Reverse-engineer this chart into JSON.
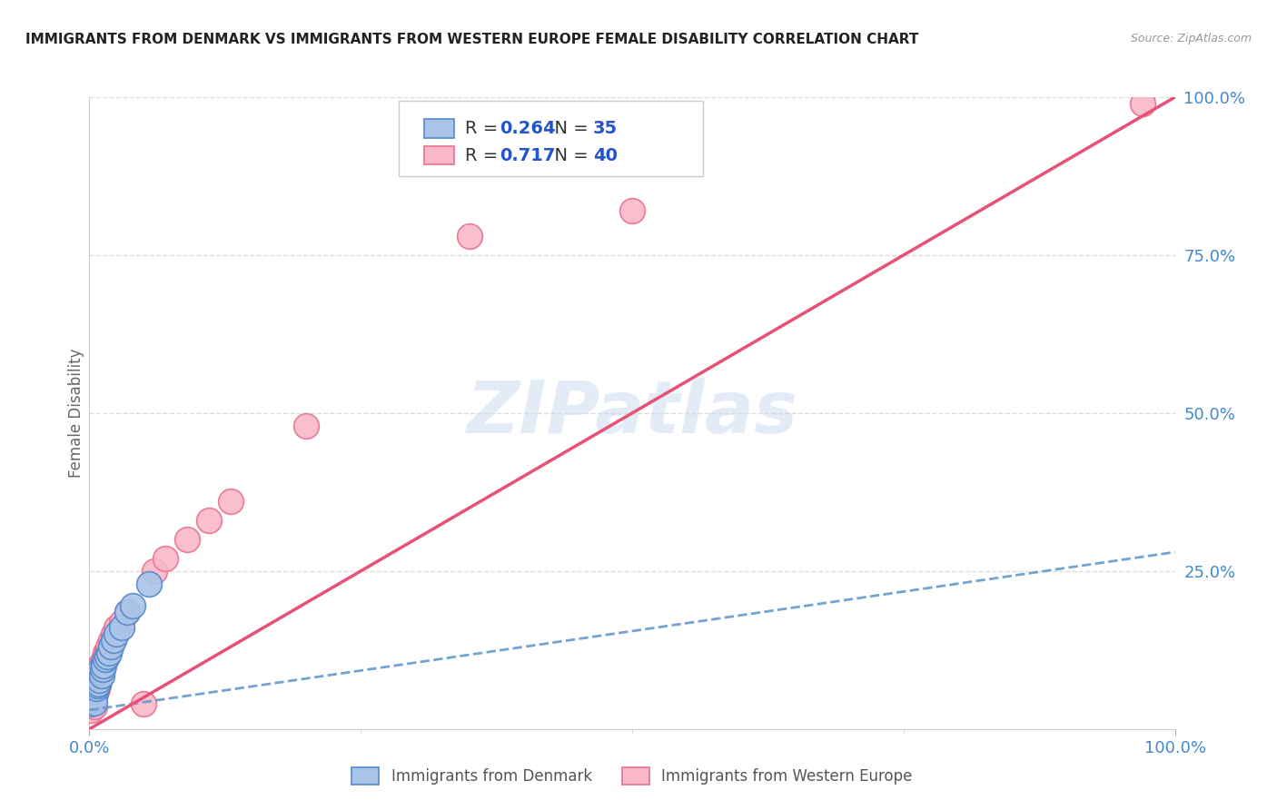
{
  "title": "IMMIGRANTS FROM DENMARK VS IMMIGRANTS FROM WESTERN EUROPE FEMALE DISABILITY CORRELATION CHART",
  "source": "Source: ZipAtlas.com",
  "ylabel": "Female Disability",
  "xlim": [
    0,
    1.0
  ],
  "ylim": [
    0,
    1.0
  ],
  "xtick_positions": [
    0.0,
    1.0
  ],
  "xtick_labels": [
    "0.0%",
    "100.0%"
  ],
  "ytick_positions": [
    0.25,
    0.5,
    0.75,
    1.0
  ],
  "ytick_labels": [
    "25.0%",
    "50.0%",
    "75.0%",
    "100.0%"
  ],
  "background_color": "#ffffff",
  "grid_color": "#dddddd",
  "denmark_color": "#aac4e8",
  "denmark_edge_color": "#5588cc",
  "western_europe_color": "#f9b8c8",
  "western_europe_edge_color": "#e87090",
  "denmark_line_color": "#6699cc",
  "western_line_color": "#e85075",
  "denmark_R": 0.264,
  "denmark_N": 35,
  "western_europe_R": 0.717,
  "western_europe_N": 40,
  "legend_label_denmark": "Immigrants from Denmark",
  "legend_label_western": "Immigrants from Western Europe",
  "watermark": "ZIPatlas",
  "dk_x": [
    0.001,
    0.002,
    0.002,
    0.003,
    0.003,
    0.003,
    0.004,
    0.004,
    0.004,
    0.005,
    0.005,
    0.005,
    0.005,
    0.006,
    0.006,
    0.007,
    0.007,
    0.008,
    0.008,
    0.009,
    0.01,
    0.01,
    0.011,
    0.012,
    0.013,
    0.015,
    0.016,
    0.018,
    0.02,
    0.022,
    0.025,
    0.03,
    0.035,
    0.04,
    0.055
  ],
  "dk_y": [
    0.04,
    0.055,
    0.045,
    0.06,
    0.05,
    0.065,
    0.055,
    0.048,
    0.062,
    0.058,
    0.07,
    0.052,
    0.042,
    0.065,
    0.075,
    0.068,
    0.08,
    0.072,
    0.085,
    0.078,
    0.09,
    0.095,
    0.085,
    0.095,
    0.1,
    0.11,
    0.115,
    0.12,
    0.13,
    0.14,
    0.15,
    0.16,
    0.185,
    0.195,
    0.23
  ],
  "we_x": [
    0.001,
    0.002,
    0.002,
    0.003,
    0.003,
    0.004,
    0.004,
    0.005,
    0.005,
    0.005,
    0.006,
    0.006,
    0.007,
    0.007,
    0.008,
    0.008,
    0.009,
    0.01,
    0.01,
    0.011,
    0.012,
    0.013,
    0.015,
    0.016,
    0.017,
    0.02,
    0.022,
    0.025,
    0.03,
    0.035,
    0.05,
    0.06,
    0.07,
    0.09,
    0.11,
    0.13,
    0.2,
    0.35,
    0.5,
    0.97
  ],
  "we_y": [
    0.03,
    0.048,
    0.042,
    0.052,
    0.06,
    0.045,
    0.065,
    0.055,
    0.035,
    0.07,
    0.06,
    0.075,
    0.065,
    0.08,
    0.07,
    0.09,
    0.085,
    0.095,
    0.1,
    0.095,
    0.105,
    0.11,
    0.12,
    0.125,
    0.13,
    0.14,
    0.15,
    0.16,
    0.17,
    0.185,
    0.04,
    0.25,
    0.27,
    0.3,
    0.33,
    0.36,
    0.48,
    0.78,
    0.82,
    0.99
  ],
  "dk_line_x": [
    0.0,
    1.0
  ],
  "dk_line_y": [
    0.03,
    0.28
  ],
  "we_line_x": [
    0.0,
    1.0
  ],
  "we_line_y": [
    0.0,
    1.0
  ]
}
